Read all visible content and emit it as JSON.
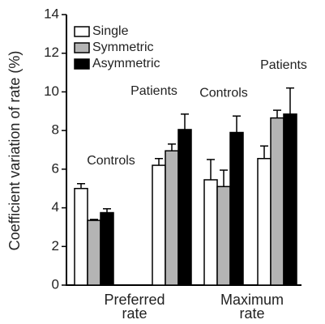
{
  "chart_data": {
    "type": "bar",
    "y_label": "Coefficient variation of rate (%)",
    "categories": [
      "Controls",
      "Patients",
      "Controls",
      "Patients"
    ],
    "x_groups": [
      [
        "Preferred",
        "rate"
      ],
      [
        "Maximum",
        "rate"
      ]
    ],
    "series": [
      {
        "name": "Single",
        "color": "#ffffff",
        "values": [
          5.0,
          6.2,
          5.45,
          6.55
        ],
        "errors": [
          0.25,
          0.35,
          1.05,
          0.65
        ]
      },
      {
        "name": "Symmetric",
        "color": "#b4b4b4",
        "values": [
          3.35,
          6.95,
          5.1,
          8.65
        ],
        "errors": [
          0.05,
          0.35,
          0.85,
          0.4
        ]
      },
      {
        "name": "Asymmetric",
        "color": "#000000",
        "values": [
          3.75,
          8.05,
          7.9,
          8.85
        ],
        "errors": [
          0.2,
          0.8,
          0.85,
          1.35
        ]
      }
    ],
    "ylim": [
      0,
      14
    ],
    "yticks": [
      0,
      2,
      4,
      6,
      8,
      10,
      12,
      14
    ],
    "legend": "upper-left"
  }
}
